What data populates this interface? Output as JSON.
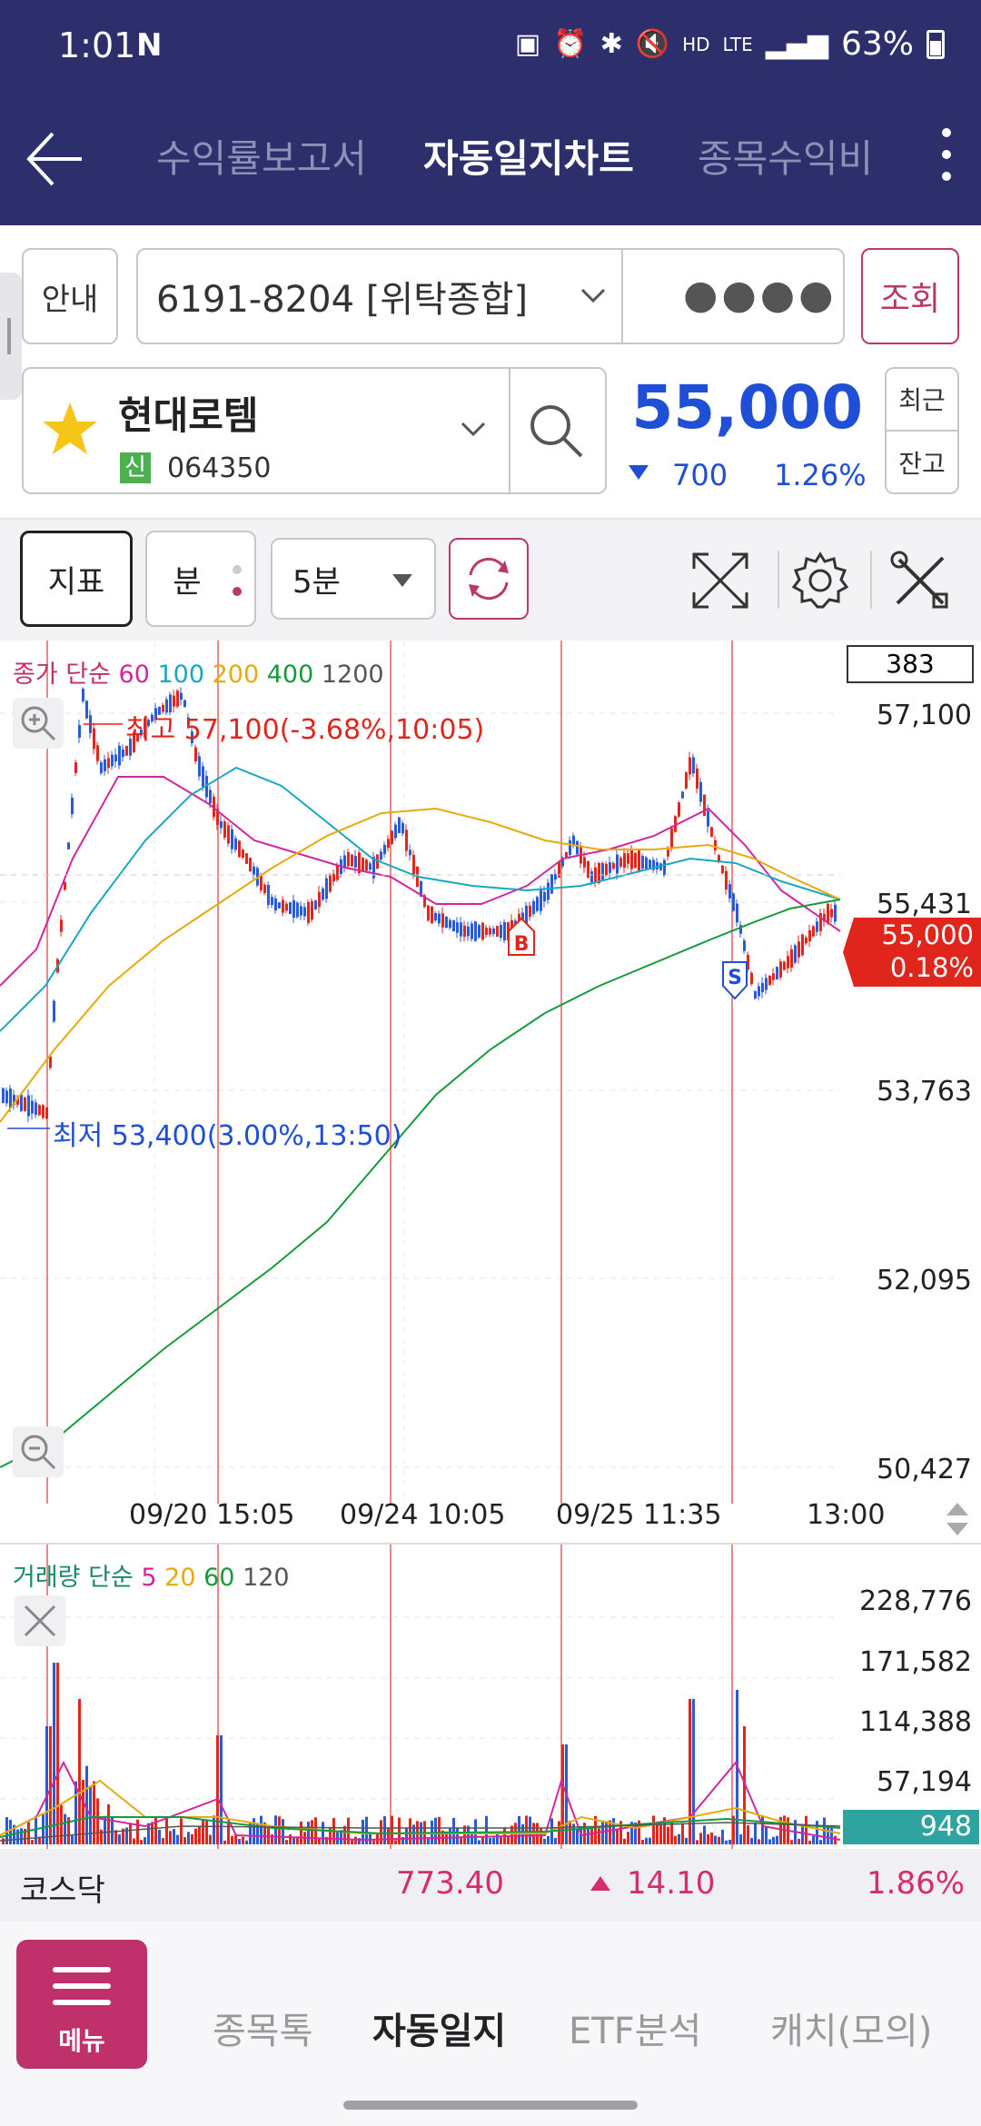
{
  "status": {
    "time": "1:01",
    "battery": "63%",
    "hd": "HD",
    "lte": "LTE"
  },
  "header": {
    "tabs": [
      {
        "label": "수익률보고서"
      },
      {
        "label": "자동일지차트"
      },
      {
        "label": "종목수익비"
      }
    ]
  },
  "account": {
    "guide_label": "안내",
    "number": "6191-8204 [위탁종합]",
    "password_mask": "●●●●",
    "query_label": "조회"
  },
  "stock": {
    "name": "현대로템",
    "credit_badge": "신",
    "code": "064350",
    "price": "55,000",
    "change": "700",
    "change_pct": "1.26%",
    "recent_label": "최근",
    "balance_label": "잔고"
  },
  "toolbar": {
    "indicator_label": "지표",
    "period_label": "분",
    "interval_value": "5분"
  },
  "price_chart": {
    "legend_prefix": "종가 단순",
    "ma_periods": [
      "60",
      "100",
      "200",
      "400",
      "1200"
    ],
    "ma_colors": [
      "#d1279b",
      "#18a7c2",
      "#e6aa0a",
      "#159a3c",
      "#555555"
    ],
    "count_box": "383",
    "y_ticks": [
      "57,100",
      "55,431",
      "53,763",
      "52,095",
      "50,427"
    ],
    "x_ticks": [
      "09/20 15:05",
      "09/24 10:05",
      "09/25 11:35",
      "13:00"
    ],
    "high_annotation": "최고 57,100(-3.68%,10:05)",
    "low_annotation": "최저 53,400(3.00%,13:50)",
    "current_price": "55,000",
    "current_pct": "0.18%",
    "buy_marker": "B",
    "sell_marker": "S",
    "up_color": "#e1261c",
    "down_color": "#2a5bd7"
  },
  "volume_chart": {
    "legend_prefix": "거래량 단순",
    "ma_periods": [
      "5",
      "20",
      "60",
      "120"
    ],
    "ma_colors": [
      "#d1279b",
      "#e6aa0a",
      "#159a3c",
      "#555555"
    ],
    "y_ticks": [
      "228,776",
      "171,582",
      "114,388",
      "57,194"
    ],
    "current_volume": "948"
  },
  "kosdaq": {
    "name": "코스닥",
    "value": "773.40",
    "change": "14.10",
    "pct": "1.86%"
  },
  "bottom_nav": {
    "menu_label": "메뉴",
    "items": [
      {
        "label": "종목톡"
      },
      {
        "label": "자동일지"
      },
      {
        "label": "ETF분석"
      },
      {
        "label": "캐치(모의)"
      }
    ]
  }
}
